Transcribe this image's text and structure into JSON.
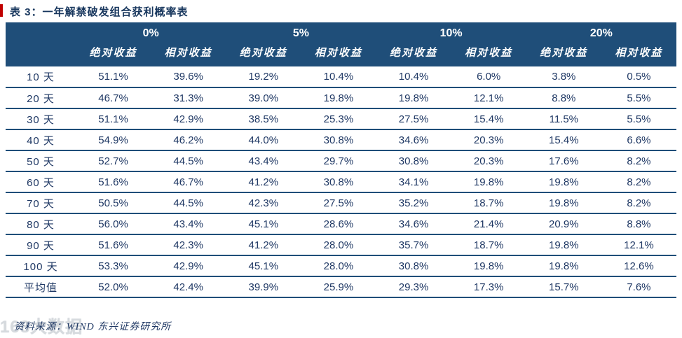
{
  "title": "表 3：一年解禁破发组合获利概率表",
  "table": {
    "group_headers": [
      "0%",
      "5%",
      "10%",
      "20%"
    ],
    "sub_headers": [
      "绝对收益",
      "相对收益"
    ],
    "rows": [
      {
        "label": "10 天",
        "values": [
          "51.1%",
          "39.6%",
          "19.2%",
          "10.4%",
          "10.4%",
          "6.0%",
          "3.8%",
          "0.5%"
        ]
      },
      {
        "label": "20 天",
        "values": [
          "46.7%",
          "31.3%",
          "39.0%",
          "19.8%",
          "19.8%",
          "12.1%",
          "8.8%",
          "5.5%"
        ]
      },
      {
        "label": "30 天",
        "values": [
          "51.1%",
          "42.9%",
          "38.5%",
          "25.3%",
          "27.5%",
          "15.4%",
          "11.5%",
          "5.5%"
        ]
      },
      {
        "label": "40 天",
        "values": [
          "54.9%",
          "46.2%",
          "44.0%",
          "30.8%",
          "34.6%",
          "20.3%",
          "15.4%",
          "6.6%"
        ]
      },
      {
        "label": "50 天",
        "values": [
          "52.7%",
          "44.5%",
          "43.4%",
          "29.7%",
          "30.8%",
          "20.3%",
          "17.6%",
          "8.2%"
        ]
      },
      {
        "label": "60 天",
        "values": [
          "51.6%",
          "46.7%",
          "41.2%",
          "30.8%",
          "34.1%",
          "19.8%",
          "19.8%",
          "8.2%"
        ]
      },
      {
        "label": "70 天",
        "values": [
          "50.5%",
          "44.5%",
          "42.3%",
          "27.5%",
          "35.2%",
          "18.7%",
          "19.8%",
          "8.2%"
        ]
      },
      {
        "label": "80 天",
        "values": [
          "56.0%",
          "43.4%",
          "45.1%",
          "28.6%",
          "34.6%",
          "21.4%",
          "20.9%",
          "8.8%"
        ]
      },
      {
        "label": "90 天",
        "values": [
          "51.6%",
          "42.3%",
          "41.2%",
          "28.0%",
          "35.7%",
          "18.7%",
          "19.8%",
          "12.1%"
        ]
      },
      {
        "label": "100 天",
        "values": [
          "53.3%",
          "42.9%",
          "45.1%",
          "28.0%",
          "30.8%",
          "19.8%",
          "19.8%",
          "12.6%"
        ]
      },
      {
        "label": "平均值",
        "values": [
          "52.0%",
          "42.4%",
          "39.9%",
          "25.9%",
          "29.3%",
          "17.3%",
          "15.7%",
          "7.6%"
        ]
      }
    ]
  },
  "chart_data": {
    "type": "table",
    "title": "表 3：一年解禁破发组合获利概率表",
    "column_groups": [
      "0%",
      "5%",
      "10%",
      "20%"
    ],
    "columns": [
      "0% 绝对收益",
      "0% 相对收益",
      "5% 绝对收益",
      "5% 相对收益",
      "10% 绝对收益",
      "10% 相对收益",
      "20% 绝对收益",
      "20% 相对收益"
    ],
    "row_labels": [
      "10 天",
      "20 天",
      "30 天",
      "40 天",
      "50 天",
      "60 天",
      "70 天",
      "80 天",
      "90 天",
      "100 天",
      "平均值"
    ],
    "values_pct": [
      [
        51.1,
        39.6,
        19.2,
        10.4,
        10.4,
        6.0,
        3.8,
        0.5
      ],
      [
        46.7,
        31.3,
        39.0,
        19.8,
        19.8,
        12.1,
        8.8,
        5.5
      ],
      [
        51.1,
        42.9,
        38.5,
        25.3,
        27.5,
        15.4,
        11.5,
        5.5
      ],
      [
        54.9,
        46.2,
        44.0,
        30.8,
        34.6,
        20.3,
        15.4,
        6.6
      ],
      [
        52.7,
        44.5,
        43.4,
        29.7,
        30.8,
        20.3,
        17.6,
        8.2
      ],
      [
        51.6,
        46.7,
        41.2,
        30.8,
        34.1,
        19.8,
        19.8,
        8.2
      ],
      [
        50.5,
        44.5,
        42.3,
        27.5,
        35.2,
        18.7,
        19.8,
        8.2
      ],
      [
        56.0,
        43.4,
        45.1,
        28.6,
        34.6,
        21.4,
        20.9,
        8.8
      ],
      [
        51.6,
        42.3,
        41.2,
        28.0,
        35.7,
        18.7,
        19.8,
        12.1
      ],
      [
        53.3,
        42.9,
        45.1,
        28.0,
        30.8,
        19.8,
        19.8,
        12.6
      ],
      [
        52.0,
        42.4,
        39.9,
        25.9,
        29.3,
        17.3,
        15.7,
        7.6
      ]
    ]
  },
  "footer": {
    "source": "资料来源：WIND 东兴证券研究所"
  },
  "watermark": "168大数据",
  "colors": {
    "header_bg": "#1f4e79",
    "line": "#1f4e79",
    "title_text": "#17365d",
    "data_text": "#1f3864",
    "accent_red": "#c00000",
    "watermark_gray": "#d6dade"
  }
}
